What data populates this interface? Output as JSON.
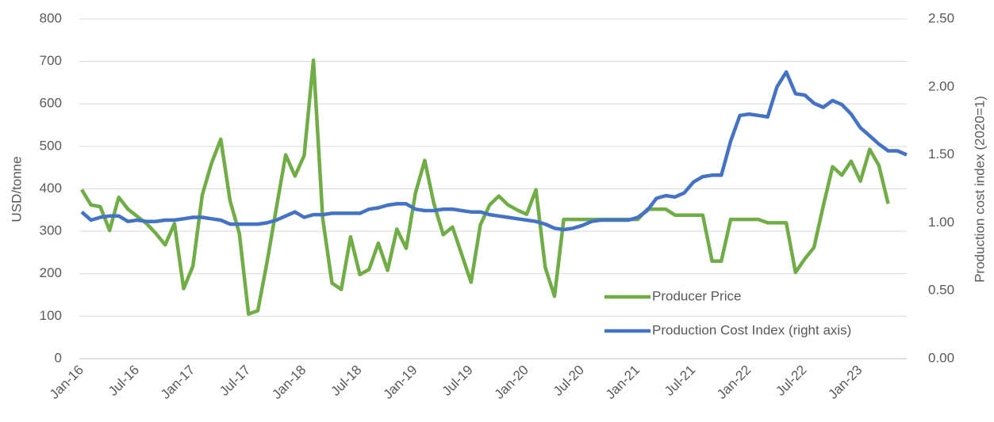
{
  "chart_data": {
    "type": "line",
    "categories": [
      "Jan-16",
      null,
      null,
      null,
      null,
      null,
      "Jul-16",
      null,
      null,
      null,
      null,
      null,
      "Jan-17",
      null,
      null,
      null,
      null,
      null,
      "Jul-17",
      null,
      null,
      null,
      null,
      null,
      "Jan-18",
      null,
      null,
      null,
      null,
      null,
      "Jul-18",
      null,
      null,
      null,
      null,
      null,
      "Jan-19",
      null,
      null,
      null,
      null,
      null,
      "Jul-19",
      null,
      null,
      null,
      null,
      null,
      "Jan-20",
      null,
      null,
      null,
      null,
      null,
      "Jul-20",
      null,
      null,
      null,
      null,
      null,
      "Jan-21",
      null,
      null,
      null,
      null,
      null,
      "Jul-21",
      null,
      null,
      null,
      null,
      null,
      "Jan-22",
      null,
      null,
      null,
      null,
      null,
      "Jul-22",
      null,
      null,
      null,
      null,
      null,
      "Jan-23",
      null,
      null,
      null,
      null,
      null
    ],
    "series": [
      {
        "name": "Producer Price",
        "color": "#70ad47",
        "axis": "y",
        "values": [
          398,
          362,
          358,
          302,
          380,
          352,
          335,
          318,
          295,
          268,
          318,
          165,
          218,
          385,
          460,
          517,
          372,
          295,
          105,
          113,
          228,
          355,
          480,
          430,
          478,
          703,
          330,
          178,
          163,
          287,
          198,
          210,
          272,
          208,
          305,
          260,
          390,
          467,
          365,
          292,
          310,
          245,
          180,
          315,
          362,
          383,
          362,
          350,
          340,
          398,
          215,
          147,
          328,
          328,
          328,
          328,
          328,
          328,
          328,
          328,
          328,
          352,
          352,
          352,
          338,
          338,
          338,
          338,
          230,
          230,
          328,
          328,
          328,
          328,
          320,
          320,
          320,
          203,
          235,
          262,
          360,
          452,
          432,
          465,
          418,
          493,
          455,
          365,
          null,
          null
        ]
      },
      {
        "name": "Production Cost Index (right axis)",
        "color": "#4472c4",
        "axis": "y2",
        "values": [
          1.08,
          1.02,
          1.04,
          1.05,
          1.05,
          1.01,
          1.02,
          1.01,
          1.01,
          1.02,
          1.02,
          1.03,
          1.04,
          1.04,
          1.03,
          1.02,
          0.99,
          0.99,
          0.99,
          0.99,
          1.0,
          1.02,
          1.05,
          1.08,
          1.04,
          1.06,
          1.06,
          1.07,
          1.07,
          1.07,
          1.07,
          1.1,
          1.11,
          1.13,
          1.14,
          1.14,
          1.1,
          1.09,
          1.09,
          1.1,
          1.1,
          1.09,
          1.08,
          1.08,
          1.06,
          1.05,
          1.04,
          1.03,
          1.02,
          1.01,
          0.99,
          0.96,
          0.95,
          0.96,
          0.98,
          1.01,
          1.02,
          1.02,
          1.02,
          1.02,
          1.04,
          1.09,
          1.18,
          1.2,
          1.19,
          1.22,
          1.3,
          1.34,
          1.35,
          1.35,
          1.6,
          1.79,
          1.8,
          1.79,
          1.78,
          2.0,
          2.11,
          1.95,
          1.94,
          1.88,
          1.85,
          1.9,
          1.87,
          1.8,
          1.7,
          1.64,
          1.58,
          1.53,
          1.53,
          1.5
        ]
      }
    ],
    "ylabel": "USD/tonne",
    "y2label": "Production cost index (2020=1)",
    "ylim": [
      0,
      800
    ],
    "yticks": [
      0,
      100,
      200,
      300,
      400,
      500,
      600,
      700,
      800
    ],
    "y2lim": [
      0,
      2.5
    ],
    "y2ticks": [
      {
        "value": 0,
        "label": "0.00"
      },
      {
        "value": 0.5,
        "label": "0.50"
      },
      {
        "value": 1,
        "label": "1.00"
      },
      {
        "value": 1.5,
        "label": "1.50"
      },
      {
        "value": 2,
        "label": "2.00"
      },
      {
        "value": 2.5,
        "label": "2.50"
      }
    ],
    "grid": true,
    "legend": "lower right"
  }
}
